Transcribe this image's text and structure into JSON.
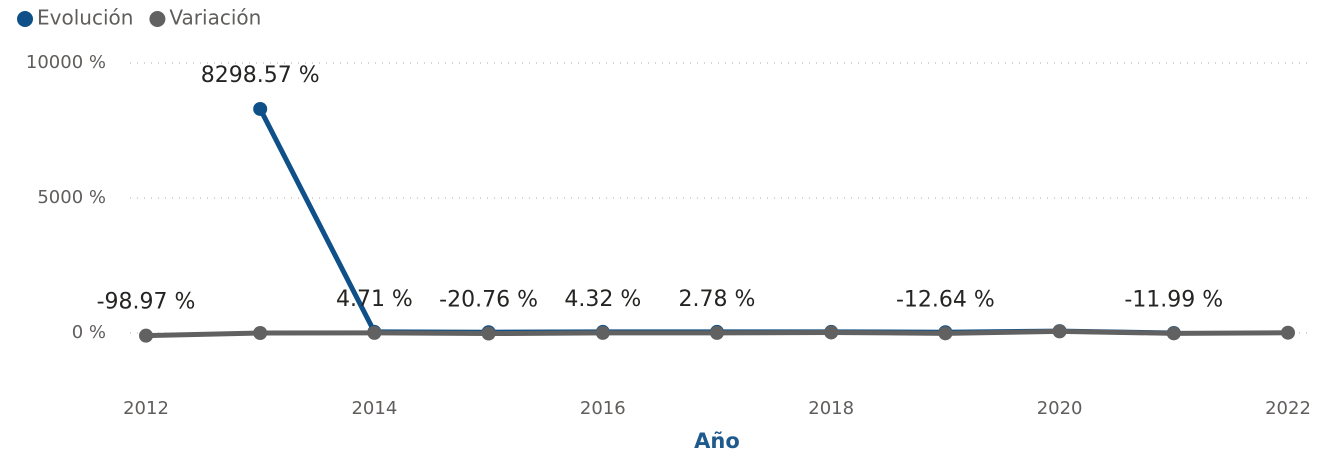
{
  "chart_data": {
    "type": "line",
    "x": [
      2012,
      2013,
      2014,
      2015,
      2016,
      2017,
      2018,
      2019,
      2020,
      2021,
      2022
    ],
    "series": [
      {
        "name": "Evolución",
        "color": "#0e5087",
        "values": [
          null,
          8298.57,
          40,
          30,
          40,
          40,
          40,
          30,
          70,
          0,
          null
        ],
        "value_labels": [
          null,
          "8298.57 %",
          null,
          null,
          null,
          null,
          null,
          null,
          null,
          null,
          null
        ]
      },
      {
        "name": "Variación",
        "color": "#616161",
        "values": [
          -98.97,
          0,
          4.71,
          -20.76,
          4.32,
          2.78,
          20,
          -12.64,
          60,
          -11.99,
          10
        ],
        "value_labels": [
          "-98.97 %",
          null,
          "4.71 %",
          "-20.76 %",
          "4.32 %",
          "2.78 %",
          null,
          "-12.64 %",
          null,
          "-11.99 %",
          null
        ]
      }
    ],
    "xlabel": "Año",
    "xlim": [
      2012,
      2022
    ],
    "xticks": [
      2012,
      2014,
      2016,
      2018,
      2020,
      2022
    ],
    "ylim": [
      0,
      10000
    ],
    "yticks": [
      {
        "value": 0,
        "label": "0 %"
      },
      {
        "value": 5000,
        "label": "5000 %"
      },
      {
        "value": 10000,
        "label": "10000 %"
      }
    ],
    "grid": true,
    "legend": "top-left"
  }
}
